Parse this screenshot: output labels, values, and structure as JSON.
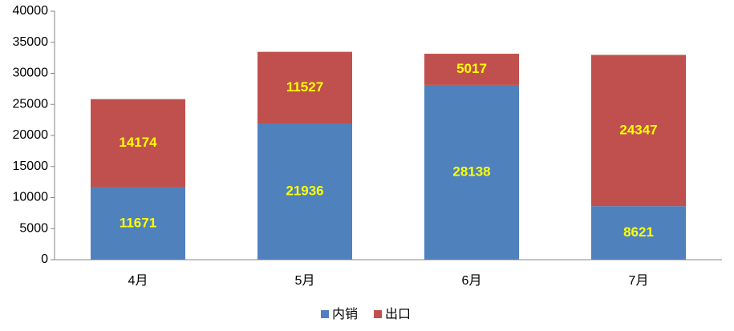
{
  "chart_data": {
    "type": "stacked-bar",
    "categories": [
      "4月",
      "5月",
      "6月",
      "7月"
    ],
    "series": [
      {
        "name": "内销",
        "color": "#4f81bd",
        "values": [
          11671,
          21936,
          28138,
          8621
        ]
      },
      {
        "name": "出口",
        "color": "#c0504d",
        "values": [
          14174,
          11527,
          5017,
          24347
        ]
      }
    ],
    "ylim": [
      0,
      40000
    ],
    "yticks": [
      0,
      5000,
      10000,
      15000,
      20000,
      25000,
      30000,
      35000,
      40000
    ],
    "grid": false,
    "legend": "bottom",
    "value_label_color": "#ffff00"
  }
}
